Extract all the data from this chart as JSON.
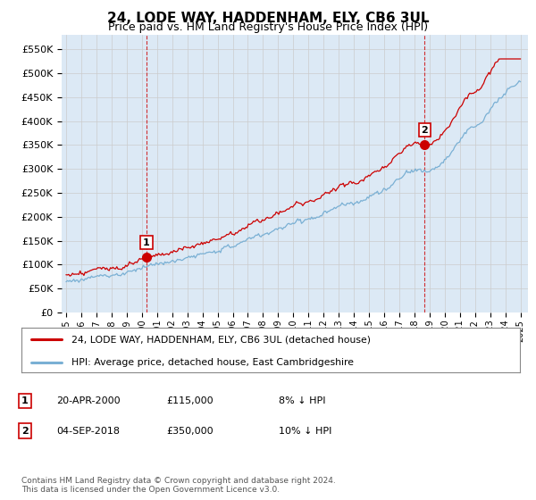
{
  "title": "24, LODE WAY, HADDENHAM, ELY, CB6 3UL",
  "subtitle": "Price paid vs. HM Land Registry's House Price Index (HPI)",
  "ylabel_ticks": [
    "£0",
    "£50K",
    "£100K",
    "£150K",
    "£200K",
    "£250K",
    "£300K",
    "£350K",
    "£400K",
    "£450K",
    "£500K",
    "£550K"
  ],
  "ytick_values": [
    0,
    50000,
    100000,
    150000,
    200000,
    250000,
    300000,
    350000,
    400000,
    450000,
    500000,
    550000
  ],
  "ylim": [
    0,
    580000
  ],
  "xlim_start": 1994.7,
  "xlim_end": 2025.5,
  "sale1_date": 2000.3,
  "sale1_price": 115000,
  "sale2_date": 2018.67,
  "sale2_price": 350000,
  "legend_entry1": "24, LODE WAY, HADDENHAM, ELY, CB6 3UL (detached house)",
  "legend_entry2": "HPI: Average price, detached house, East Cambridgeshire",
  "footer": "Contains HM Land Registry data © Crown copyright and database right 2024.\nThis data is licensed under the Open Government Licence v3.0.",
  "hpi_color": "#7ab0d4",
  "price_color": "#cc0000",
  "marker_color": "#cc0000",
  "vline_color": "#cc0000",
  "grid_color": "#cccccc",
  "bg_color": "#ffffff",
  "plot_bg_color": "#dce9f5",
  "xtick_years": [
    1995,
    1996,
    1997,
    1998,
    1999,
    2000,
    2001,
    2002,
    2003,
    2004,
    2005,
    2006,
    2007,
    2008,
    2009,
    2010,
    2011,
    2012,
    2013,
    2014,
    2015,
    2016,
    2017,
    2018,
    2019,
    2020,
    2021,
    2022,
    2023,
    2024,
    2025
  ]
}
